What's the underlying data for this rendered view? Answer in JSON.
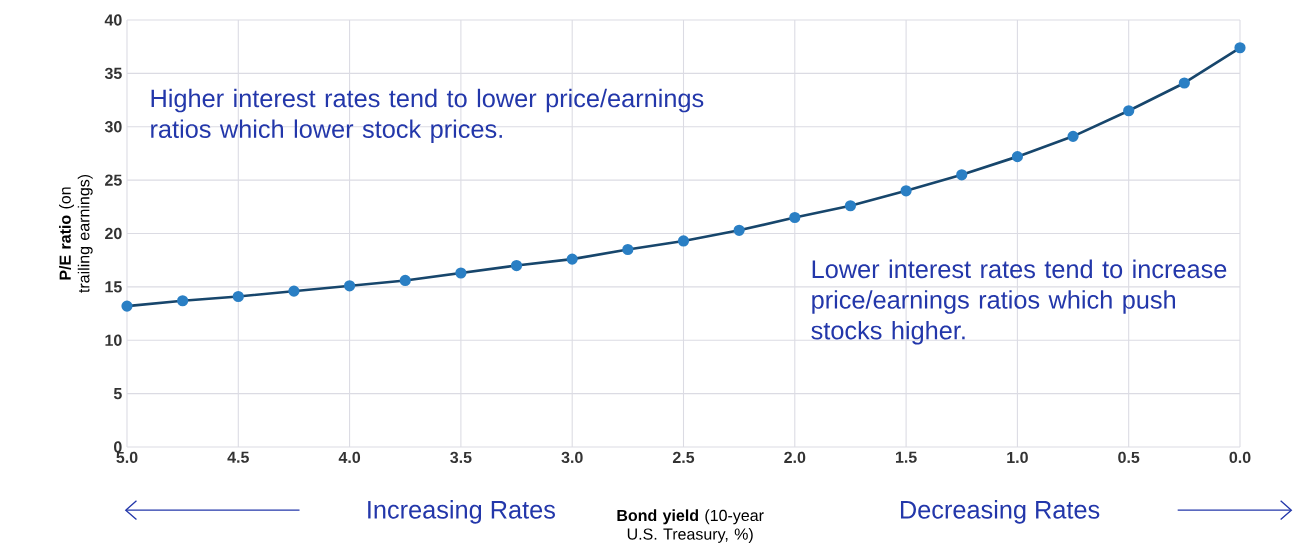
{
  "chart_data": {
    "type": "line",
    "xlabel": "**Bond yield** (10-year U.S. Treasury, %)",
    "ylabel": "**P/E ratio** (on trailing earnings)",
    "x": [
      5.0,
      4.75,
      4.5,
      4.25,
      4.0,
      3.75,
      3.5,
      3.25,
      3.0,
      2.75,
      2.5,
      2.25,
      2.0,
      1.75,
      1.5,
      1.25,
      1.0,
      0.75,
      0.5,
      0.25,
      0.0
    ],
    "series": [
      {
        "color": "#2a7fc4",
        "values": [
          13.2,
          13.7,
          14.1,
          14.6,
          15.1,
          15.6,
          16.3,
          17.0,
          17.6,
          18.5,
          19.3,
          20.3,
          21.5,
          22.6,
          24.0,
          25.5,
          27.2,
          29.1,
          31.5,
          34.1,
          37.4
        ]
      }
    ],
    "xlim": [
      5,
      0
    ],
    "xticks": [
      {
        "value": 5,
        "label": "5.0"
      },
      {
        "value": 4.5,
        "label": "4.5"
      },
      {
        "value": 4,
        "label": "4.0"
      },
      {
        "value": 3.5,
        "label": "3.5"
      },
      {
        "value": 3,
        "label": "3.0"
      },
      {
        "value": 2.5,
        "label": "2.5"
      },
      {
        "value": 2,
        "label": "2.0"
      },
      {
        "value": 1.5,
        "label": "1.5"
      },
      {
        "value": 1,
        "label": "1.0"
      },
      {
        "value": 0.5,
        "label": "0.5"
      },
      {
        "value": 0,
        "label": "0.0"
      }
    ],
    "ylim": [
      0,
      40
    ],
    "yticks": [
      0,
      5,
      10,
      15,
      20,
      25,
      30,
      35,
      40
    ],
    "grid": true,
    "marker": "circle",
    "line_style": "solid",
    "annotations": [
      "Higher interest rates tend to lower price/earnings ratios which lower stock prices.",
      "Lower interest rates tend to increase price/earnings ratios which push stocks higher.",
      "Increasing Rates",
      "Decreasing Rates"
    ]
  }
}
